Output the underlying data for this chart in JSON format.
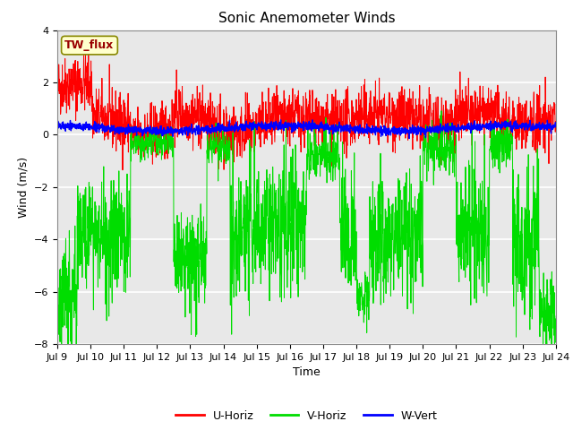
{
  "title": "Sonic Anemometer Winds",
  "xlabel": "Time",
  "ylabel": "Wind (m/s)",
  "ylim": [
    -8,
    4
  ],
  "yticks": [
    -8,
    -6,
    -4,
    -2,
    0,
    2,
    4
  ],
  "xlim_start_day": 9,
  "xlim_end_day": 24,
  "xtick_days": [
    9,
    10,
    11,
    12,
    13,
    14,
    15,
    16,
    17,
    18,
    19,
    20,
    21,
    22,
    23,
    24
  ],
  "colors": {
    "U_Horiz": "#FF0000",
    "V_Horiz": "#00DD00",
    "W_Vert": "#0000FF",
    "fig_bg": "#FFFFFF",
    "plot_bg": "#E8E8E8"
  },
  "legend_labels": [
    "U-Horiz",
    "V-Horiz",
    "W-Vert"
  ],
  "annotation_text": "TW_flux",
  "annotation_color": "#990000",
  "annotation_bg": "#FFFFCC",
  "seed": 42,
  "n_points": 2000
}
